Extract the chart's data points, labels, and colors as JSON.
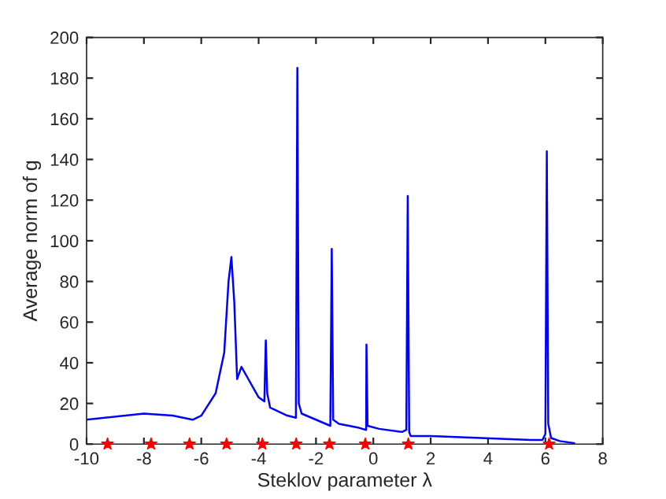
{
  "chart_data": {
    "type": "line",
    "xlabel": "Steklov parameter λ",
    "ylabel": "Average norm of g",
    "xlim": [
      -10,
      8
    ],
    "xticks": [
      -10,
      -8,
      -6,
      -4,
      -2,
      0,
      2,
      4,
      6,
      8
    ],
    "ylim": [
      0,
      200
    ],
    "yticks": [
      0,
      20,
      40,
      60,
      80,
      100,
      120,
      140,
      160,
      180,
      200
    ],
    "grid": false,
    "legend": false,
    "series": [
      {
        "color": "#0000ff",
        "marker": "none",
        "x": [
          -10,
          -8,
          -7,
          -6.3,
          -6,
          -5.5,
          -5.2,
          -5.05,
          -4.95,
          -4.85,
          -4.75,
          -4.6,
          -4.4,
          -4.0,
          -3.8,
          -3.75,
          -3.7,
          -3.6,
          -3.0,
          -2.7,
          -2.65,
          -2.6,
          -2.5,
          -2.0,
          -1.5,
          -1.45,
          -1.4,
          -1.2,
          -0.5,
          -0.25,
          -0.24,
          -0.2,
          0.2,
          1.0,
          1.15,
          1.2,
          1.25,
          1.3,
          2,
          5.5,
          5.9,
          6.0,
          6.05,
          6.1,
          6.2,
          6.5,
          7.0
        ],
        "values": [
          12,
          15,
          14,
          12,
          14,
          25,
          45,
          80,
          92,
          70,
          32,
          38,
          33,
          23,
          21,
          51,
          25,
          18,
          14,
          13,
          185,
          20,
          15,
          12,
          9,
          96,
          12,
          10,
          8,
          7,
          49,
          9,
          7.5,
          6,
          7,
          122,
          6,
          4,
          4,
          2,
          2,
          5,
          144,
          10,
          3,
          1.5,
          0.5
        ]
      },
      {
        "type": "scatter",
        "color": "#ff0000",
        "marker": "star",
        "x": [
          -9.27,
          -7.75,
          -6.41,
          -5.12,
          -3.87,
          -2.69,
          -1.53,
          -0.28,
          1.22,
          6.13
        ],
        "values": [
          0,
          0,
          0,
          0,
          0,
          0,
          0,
          0,
          0,
          0
        ]
      }
    ]
  }
}
